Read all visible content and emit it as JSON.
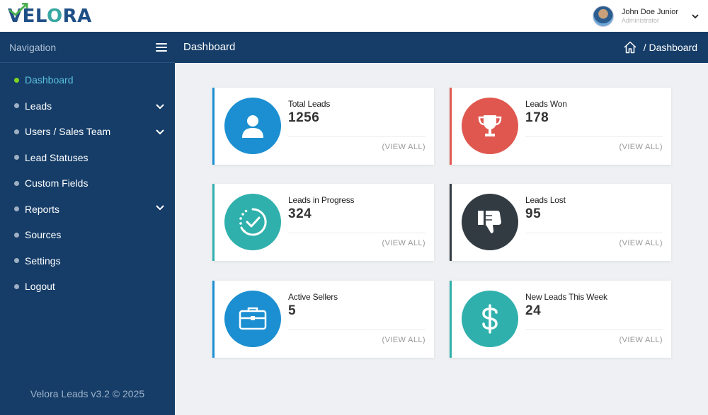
{
  "brand": {
    "name_prefix": "VEL",
    "name_o": "O",
    "name_suffix": "RA"
  },
  "user": {
    "name": "John Doe Junior",
    "role": "Administrator"
  },
  "sidebar": {
    "title": "Navigation",
    "items": [
      {
        "label": "Dashboard",
        "active": true
      },
      {
        "label": "Leads"
      },
      {
        "label": "Users / Sales Team"
      },
      {
        "label": "Lead Statuses"
      },
      {
        "label": "Custom Fields"
      },
      {
        "label": "Reports"
      },
      {
        "label": "Sources"
      },
      {
        "label": "Settings"
      },
      {
        "label": "Logout"
      }
    ],
    "footer": "Velora Leads v3.2 © 2025"
  },
  "header": {
    "title": "Dashboard",
    "breadcrumb": "/ Dashboard"
  },
  "cards": [
    {
      "label": "Total Leads",
      "value": "1256",
      "link": "(VIEW ALL)",
      "icon": "user-icon",
      "color": "#1b8fd1"
    },
    {
      "label": "Leads Won",
      "value": "178",
      "link": "(VIEW ALL)",
      "icon": "trophy-icon",
      "color": "#e0574f"
    },
    {
      "label": "Leads in Progress",
      "value": "324",
      "link": "(VIEW ALL)",
      "icon": "progress-check-icon",
      "color": "#2fb0ac"
    },
    {
      "label": "Leads Lost",
      "value": "95",
      "link": "(VIEW ALL)",
      "icon": "thumbs-down-icon",
      "color": "#333b42"
    },
    {
      "label": "Active Sellers",
      "value": "5",
      "link": "(VIEW ALL)",
      "icon": "briefcase-icon",
      "color": "#1b8fd1"
    },
    {
      "label": "New Leads This Week",
      "value": "24",
      "link": "(VIEW ALL)",
      "icon": "dollar-icon",
      "color": "#2fb0ac"
    }
  ],
  "colors": {
    "navy": "#153d68",
    "active_link": "#5bc0de",
    "active_dot": "#7ed321"
  }
}
